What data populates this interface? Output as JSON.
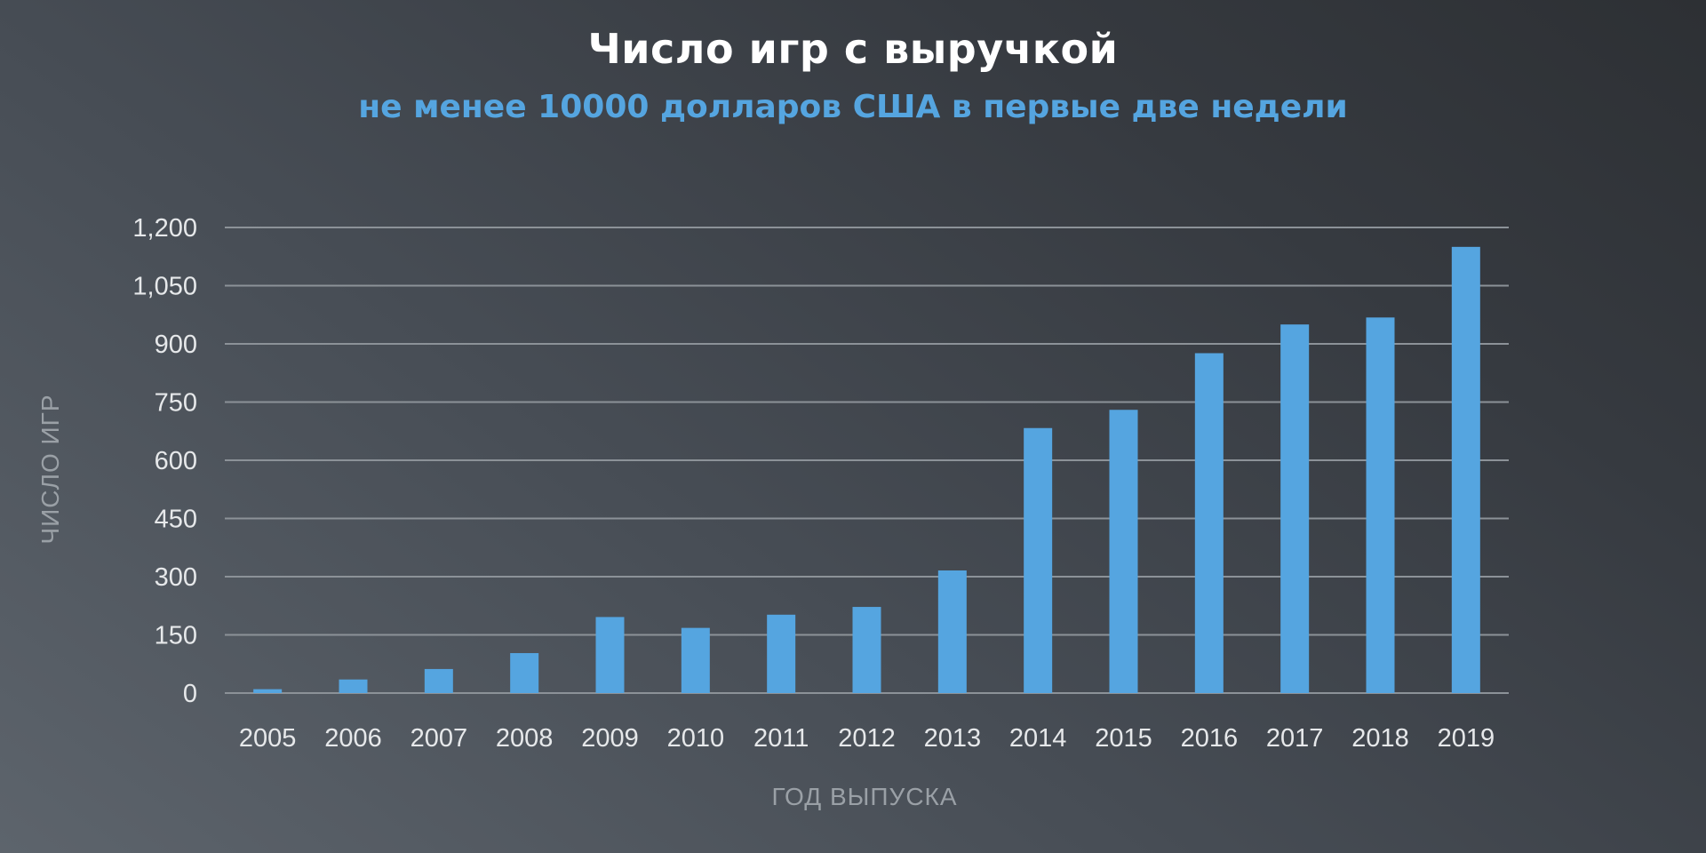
{
  "chart_data": {
    "type": "bar",
    "title": "Число игр с выручкой",
    "subtitle": "не менее 10000 долларов США в первые две недели",
    "xlabel": "ГОД ВЫПУСКА",
    "ylabel": "ЧИСЛО ИГР",
    "categories": [
      "2005",
      "2006",
      "2007",
      "2008",
      "2009",
      "2010",
      "2011",
      "2012",
      "2013",
      "2014",
      "2015",
      "2016",
      "2017",
      "2018",
      "2019"
    ],
    "values": [
      10,
      35,
      62,
      103,
      196,
      168,
      202,
      222,
      316,
      683,
      730,
      876,
      950,
      968,
      1150
    ],
    "ylim": [
      0,
      1200
    ],
    "yticks": [
      0,
      150,
      300,
      450,
      600,
      750,
      900,
      1050,
      1200
    ],
    "ytick_labels": [
      "0",
      "150",
      "300",
      "450",
      "600",
      "750",
      "900",
      "1,050",
      "1,200"
    ],
    "grid": true,
    "bar_color": "#55a5e0",
    "grid_color": "#8c9298",
    "title_color": "#ffffff",
    "subtitle_color": "#55a5e0"
  }
}
